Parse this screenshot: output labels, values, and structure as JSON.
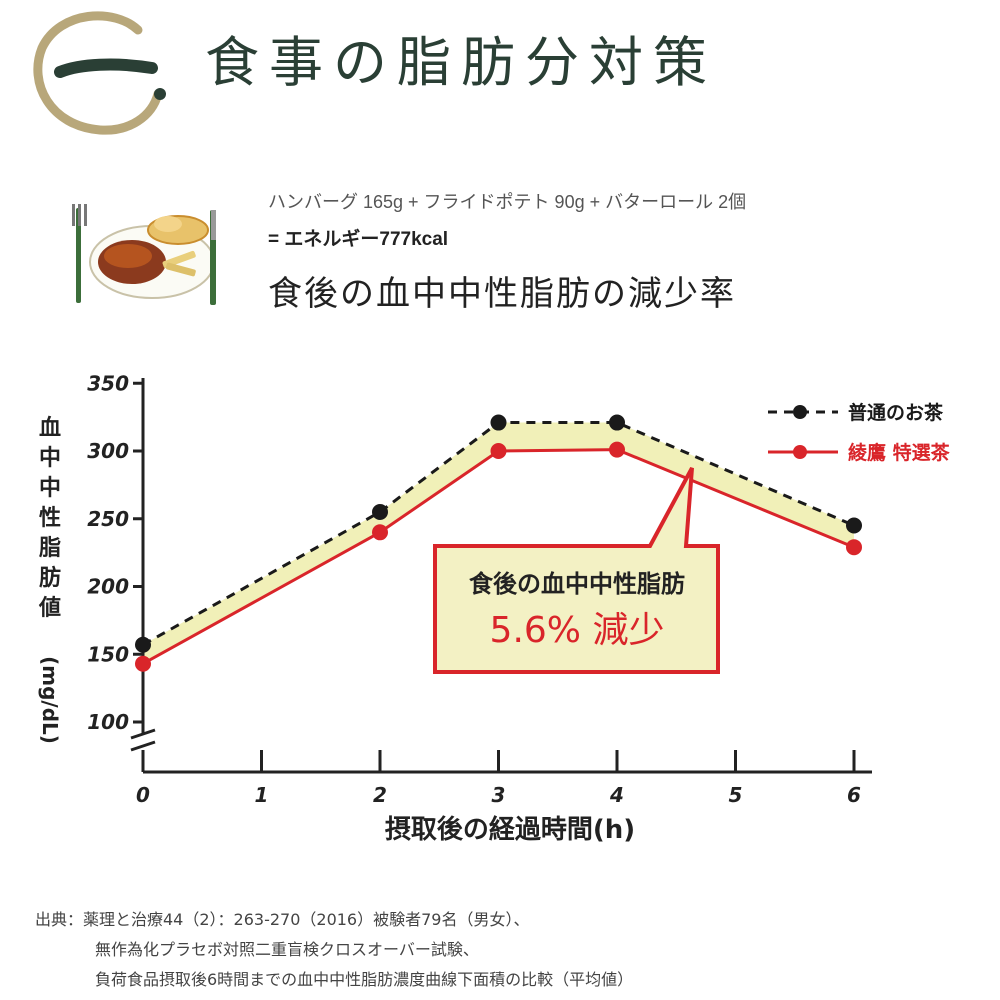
{
  "header": {
    "logo_text": "一",
    "title": "食事の脂肪分対策"
  },
  "meal": {
    "description": "ハンバーグ 165g + フライドポテト 90g + バターロール 2個",
    "energy": "= エネルギー777kcal"
  },
  "chart_heading": "食後の血中中性脂肪の減少率",
  "chart_data": {
    "type": "line",
    "title": "",
    "xlabel": "摂取後の経過時間(h)",
    "ylabel": "血中中性脂肪値(mg/dL)",
    "x_ticks": [
      "0",
      "1",
      "2",
      "3",
      "4",
      "5",
      "6"
    ],
    "y_ticks": [
      "100",
      "150",
      "200",
      "250",
      "300",
      "350"
    ],
    "xlim": [
      0,
      6
    ],
    "ylim": [
      100,
      350
    ],
    "axis_break": true,
    "grid": false,
    "legend_position": "top-right",
    "shaded_difference_color": "#f1f0b8",
    "series": [
      {
        "name": "普通のお茶",
        "color": "#1a1a1a",
        "dashed": true,
        "x": [
          0,
          2,
          3,
          4,
          6
        ],
        "y": [
          157,
          255,
          321,
          321,
          245
        ]
      },
      {
        "name": "綾鷹 特選茶",
        "color": "#d9252a",
        "dashed": false,
        "x": [
          0,
          2,
          3,
          4,
          6
        ],
        "y": [
          143,
          240,
          300,
          301,
          229
        ]
      }
    ],
    "annotation": {
      "line1": "食後の血中中性脂肪",
      "line2": "5.6% 減少",
      "color": "#d9252a",
      "fill": "#f3f1c4"
    }
  },
  "source": {
    "line1": "出典：薬理と治療44（2）：263-270（2016）被験者79名（男女）、",
    "line2": "無作為化プラセボ対照二重盲検クロスオーバー試験、",
    "line3": "負荷食品摂取後6時間までの血中中性脂肪濃度曲線下面積の比較（平均値）"
  }
}
